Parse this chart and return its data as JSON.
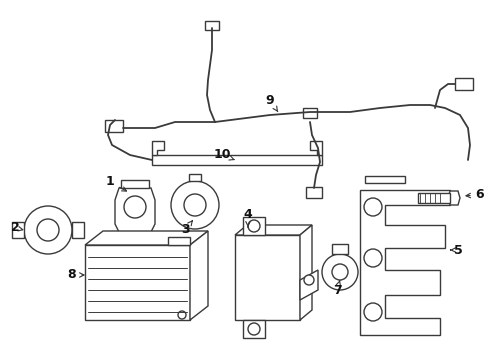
{
  "bg_color": "#ffffff",
  "line_color": "#3a3a3a",
  "lw": 1.0,
  "fig_w": 4.89,
  "fig_h": 3.6,
  "dpi": 100,
  "xlim": [
    0,
    489
  ],
  "ylim": [
    0,
    360
  ]
}
